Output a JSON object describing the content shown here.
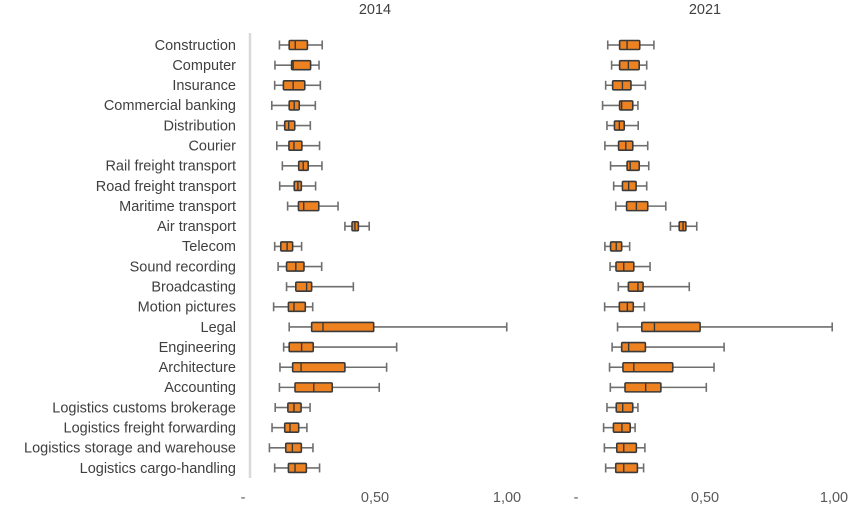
{
  "chart_data": {
    "type": "boxplot",
    "categories": [
      "Construction",
      "Computer",
      "Insurance",
      "Commercial banking",
      "Distribution",
      "Courier",
      "Rail freight transport",
      "Road freight transport",
      "Maritime transport",
      "Air transport",
      "Telecom",
      "Sound recording",
      "Broadcasting",
      "Motion pictures",
      "Legal",
      "Engineering",
      "Architecture",
      "Accounting",
      "Logistics customs brokerage",
      "Logistics freight forwarding",
      "Logistics storage and warehouse",
      "Logistics cargo-handling"
    ],
    "xlim": [
      0,
      1
    ],
    "ticks": [
      {
        "value": 0,
        "label": "-"
      },
      {
        "value": 0.5,
        "label": "0,50"
      },
      {
        "value": 1,
        "label": "1,00"
      }
    ],
    "colors": {
      "box": "#EE8220",
      "outline": "#3a3a3a",
      "whisker": "#6f6f6f",
      "axis": "#d9d9d9"
    },
    "panels": [
      {
        "title": "2014",
        "boxes": [
          [
            0.138,
            0.175,
            0.198,
            0.244,
            0.3
          ],
          [
            0.121,
            0.184,
            0.19,
            0.256,
            0.288
          ],
          [
            0.12,
            0.153,
            0.19,
            0.234,
            0.293
          ],
          [
            0.109,
            0.175,
            0.194,
            0.213,
            0.274
          ],
          [
            0.128,
            0.158,
            0.173,
            0.196,
            0.255
          ],
          [
            0.128,
            0.174,
            0.193,
            0.223,
            0.29
          ],
          [
            0.149,
            0.211,
            0.228,
            0.247,
            0.299
          ],
          [
            0.139,
            0.194,
            0.208,
            0.221,
            0.275
          ],
          [
            0.169,
            0.21,
            0.23,
            0.287,
            0.36
          ],
          [
            0.386,
            0.413,
            0.424,
            0.437,
            0.478
          ],
          [
            0.12,
            0.143,
            0.167,
            0.188,
            0.222
          ],
          [
            0.133,
            0.165,
            0.2,
            0.231,
            0.298
          ],
          [
            0.165,
            0.2,
            0.241,
            0.26,
            0.418
          ],
          [
            0.116,
            0.172,
            0.193,
            0.236,
            0.264
          ],
          [
            0.175,
            0.26,
            0.303,
            0.495,
            0.999
          ],
          [
            0.154,
            0.175,
            0.222,
            0.266,
            0.582
          ],
          [
            0.14,
            0.188,
            0.22,
            0.386,
            0.544
          ],
          [
            0.138,
            0.197,
            0.268,
            0.338,
            0.516
          ],
          [
            0.122,
            0.17,
            0.193,
            0.22,
            0.254
          ],
          [
            0.11,
            0.158,
            0.178,
            0.211,
            0.242
          ],
          [
            0.1,
            0.162,
            0.187,
            0.221,
            0.265
          ],
          [
            0.12,
            0.172,
            0.197,
            0.24,
            0.29
          ]
        ]
      },
      {
        "title": "2021",
        "boxes": [
          [
            0.123,
            0.169,
            0.198,
            0.247,
            0.302
          ],
          [
            0.138,
            0.169,
            0.203,
            0.245,
            0.274
          ],
          [
            0.115,
            0.142,
            0.18,
            0.213,
            0.269
          ],
          [
            0.103,
            0.169,
            0.177,
            0.22,
            0.24
          ],
          [
            0.12,
            0.149,
            0.168,
            0.187,
            0.241
          ],
          [
            0.112,
            0.165,
            0.193,
            0.22,
            0.278
          ],
          [
            0.134,
            0.198,
            0.21,
            0.245,
            0.282
          ],
          [
            0.146,
            0.18,
            0.204,
            0.233,
            0.274
          ],
          [
            0.154,
            0.196,
            0.234,
            0.278,
            0.348
          ],
          [
            0.366,
            0.4,
            0.415,
            0.426,
            0.468
          ],
          [
            0.112,
            0.134,
            0.156,
            0.177,
            0.208
          ],
          [
            0.132,
            0.155,
            0.185,
            0.224,
            0.287
          ],
          [
            0.164,
            0.203,
            0.24,
            0.26,
            0.439
          ],
          [
            0.111,
            0.168,
            0.199,
            0.222,
            0.265
          ],
          [
            0.161,
            0.255,
            0.304,
            0.481,
            0.993
          ],
          [
            0.14,
            0.177,
            0.204,
            0.269,
            0.574
          ],
          [
            0.13,
            0.182,
            0.224,
            0.375,
            0.535
          ],
          [
            0.133,
            0.19,
            0.27,
            0.329,
            0.505
          ],
          [
            0.12,
            0.156,
            0.181,
            0.22,
            0.24
          ],
          [
            0.107,
            0.145,
            0.178,
            0.21,
            0.229
          ],
          [
            0.11,
            0.158,
            0.185,
            0.234,
            0.267
          ],
          [
            0.115,
            0.154,
            0.185,
            0.238,
            0.262
          ]
        ]
      }
    ]
  }
}
